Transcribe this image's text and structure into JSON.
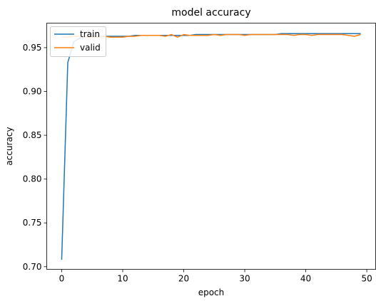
{
  "chart_data": {
    "type": "line",
    "title": "model accuracy",
    "xlabel": "epoch",
    "ylabel": "accuracy",
    "xlim": [
      -2.45,
      51.45
    ],
    "ylim": [
      0.697,
      0.978
    ],
    "xticks": [
      0,
      10,
      20,
      30,
      40,
      50
    ],
    "yticks": [
      0.7,
      0.75,
      0.8,
      0.85,
      0.9,
      0.95
    ],
    "xtick_labels": [
      "0",
      "10",
      "20",
      "30",
      "40",
      "50"
    ],
    "ytick_labels": [
      "0.70",
      "0.75",
      "0.80",
      "0.85",
      "0.90",
      "0.95"
    ],
    "grid": false,
    "legend_position": "top-left",
    "x": [
      0,
      1,
      2,
      3,
      4,
      5,
      6,
      7,
      8,
      9,
      10,
      11,
      12,
      13,
      14,
      15,
      16,
      17,
      18,
      19,
      20,
      21,
      22,
      23,
      24,
      25,
      26,
      27,
      28,
      29,
      30,
      31,
      32,
      33,
      34,
      35,
      36,
      37,
      38,
      39,
      40,
      41,
      42,
      43,
      44,
      45,
      46,
      47,
      48,
      49
    ],
    "series": [
      {
        "name": "train",
        "color": "#1f77b4",
        "values": [
          0.708,
          0.933,
          0.957,
          0.961,
          0.962,
          0.963,
          0.963,
          0.963,
          0.963,
          0.963,
          0.963,
          0.963,
          0.964,
          0.964,
          0.964,
          0.964,
          0.964,
          0.964,
          0.964,
          0.964,
          0.964,
          0.964,
          0.965,
          0.965,
          0.965,
          0.965,
          0.965,
          0.965,
          0.965,
          0.965,
          0.965,
          0.965,
          0.965,
          0.965,
          0.965,
          0.965,
          0.966,
          0.966,
          0.966,
          0.966,
          0.966,
          0.966,
          0.966,
          0.966,
          0.966,
          0.966,
          0.966,
          0.966,
          0.966,
          0.966
        ]
      },
      {
        "name": "valid",
        "color": "#ff7f0e",
        "values": [
          0.962,
          0.962,
          0.963,
          0.963,
          0.962,
          0.962,
          0.962,
          0.963,
          0.962,
          0.962,
          0.962,
          0.963,
          0.963,
          0.964,
          0.964,
          0.964,
          0.964,
          0.963,
          0.965,
          0.962,
          0.965,
          0.964,
          0.964,
          0.964,
          0.964,
          0.965,
          0.964,
          0.965,
          0.965,
          0.965,
          0.964,
          0.965,
          0.965,
          0.965,
          0.965,
          0.965,
          0.965,
          0.965,
          0.964,
          0.965,
          0.965,
          0.964,
          0.965,
          0.965,
          0.965,
          0.965,
          0.965,
          0.964,
          0.963,
          0.965
        ]
      }
    ]
  }
}
